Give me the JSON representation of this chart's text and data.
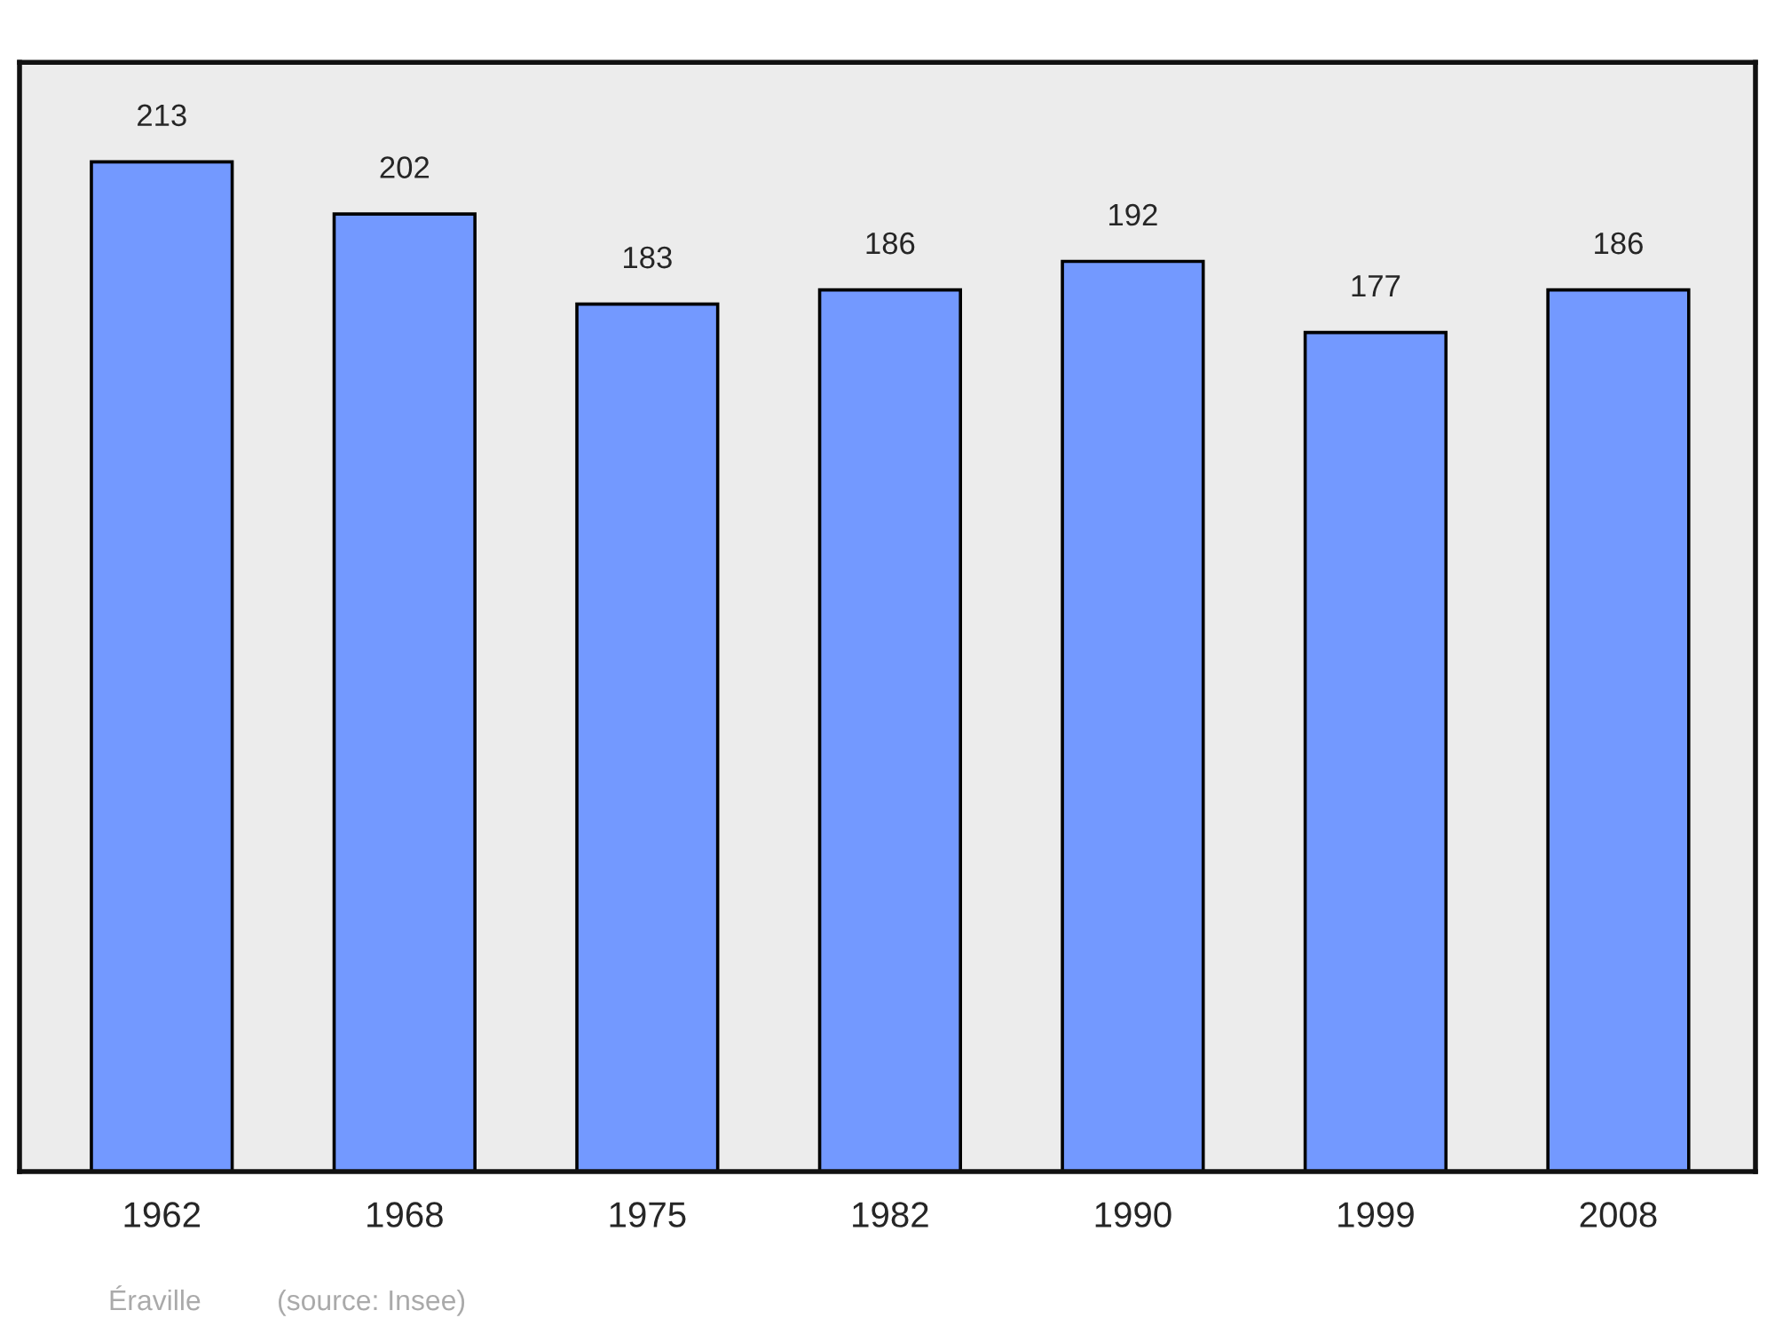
{
  "chart_data": {
    "type": "bar",
    "categories": [
      "1962",
      "1968",
      "1975",
      "1982",
      "1990",
      "1999",
      "2008"
    ],
    "values": [
      213,
      202,
      183,
      186,
      192,
      177,
      186
    ],
    "color": "#7399ff",
    "ylim": [
      0,
      234
    ],
    "data_labels": true,
    "grid": false,
    "tick_labels": "x",
    "annotations": [
      "Éraville",
      "(source: Insee)"
    ]
  }
}
